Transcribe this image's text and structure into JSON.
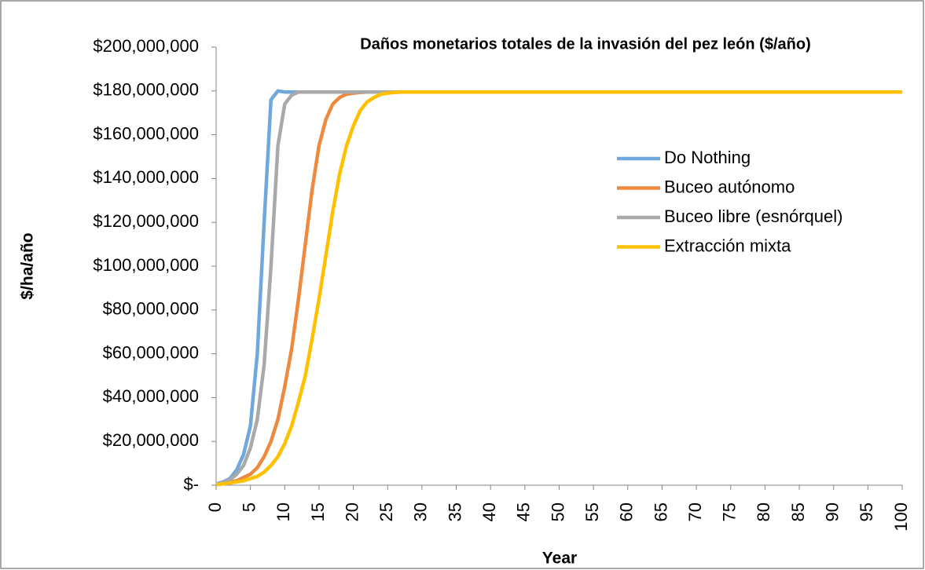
{
  "chart_data": {
    "type": "line",
    "title": "Daños monetarios totales de la invasión del pez león ($/año)",
    "x_label": "Year",
    "y_label": "$/ha/año",
    "x": [
      0,
      1,
      2,
      3,
      4,
      5,
      6,
      7,
      8,
      9,
      10,
      11,
      12,
      13,
      14,
      15,
      16,
      17,
      18,
      19,
      20,
      21,
      22,
      23,
      24,
      25,
      26,
      27,
      28,
      29,
      30,
      40,
      50,
      60,
      70,
      80,
      90,
      100
    ],
    "series": [
      {
        "name": "Do Nothing",
        "color": "#6fa8dc",
        "values": [
          500000,
          1500000,
          3000000,
          7000000,
          14000000,
          27000000,
          60000000,
          120000000,
          176000000,
          180000000,
          179500000,
          179500000,
          179500000,
          179500000,
          179500000,
          179500000,
          179500000,
          179500000,
          179500000,
          179500000,
          179500000,
          179500000,
          179500000,
          179500000,
          179500000,
          179500000,
          179500000,
          179500000,
          179500000,
          179500000,
          179500000,
          179500000,
          179500000,
          179500000,
          179500000,
          179500000,
          179500000,
          179500000
        ]
      },
      {
        "name": "Buceo autónomo",
        "color": "#ed8a3f",
        "values": [
          300000,
          800000,
          1500000,
          2000000,
          3500000,
          5000000,
          8000000,
          13000000,
          20000000,
          30000000,
          45000000,
          62000000,
          85000000,
          110000000,
          135000000,
          155000000,
          167000000,
          174000000,
          177000000,
          178500000,
          179000000,
          179300000,
          179500000,
          179500000,
          179500000,
          179500000,
          179500000,
          179500000,
          179500000,
          179500000,
          179500000,
          179500000,
          179500000,
          179500000,
          179500000,
          179500000,
          179500000,
          179500000
        ]
      },
      {
        "name": "Buceo libre (esnórquel)",
        "color": "#a9a9a9",
        "values": [
          400000,
          1200000,
          2500000,
          5000000,
          9000000,
          17000000,
          30000000,
          55000000,
          100000000,
          155000000,
          174000000,
          178000000,
          179500000,
          179500000,
          179500000,
          179500000,
          179500000,
          179500000,
          179500000,
          179500000,
          179500000,
          179500000,
          179500000,
          179500000,
          179500000,
          179500000,
          179500000,
          179500000,
          179500000,
          179500000,
          179500000,
          179500000,
          179500000,
          179500000,
          179500000,
          179500000,
          179500000,
          179500000
        ]
      },
      {
        "name": "Extracción mixta",
        "color": "#ffc000",
        "values": [
          300000,
          600000,
          1000000,
          1500000,
          2000000,
          3000000,
          4000000,
          6000000,
          9000000,
          13000000,
          19000000,
          27000000,
          38000000,
          50000000,
          67000000,
          85000000,
          105000000,
          125000000,
          142000000,
          155000000,
          164000000,
          171000000,
          175000000,
          177000000,
          178500000,
          179000000,
          179300000,
          179500000,
          179500000,
          179500000,
          179500000,
          179500000,
          179500000,
          179500000,
          179500000,
          179500000,
          179500000,
          179500000
        ]
      }
    ],
    "xlim": [
      0,
      100
    ],
    "xticks": [
      0,
      5,
      10,
      15,
      20,
      25,
      30,
      35,
      40,
      45,
      50,
      55,
      60,
      65,
      70,
      75,
      80,
      85,
      90,
      95,
      100
    ],
    "ylim": [
      0,
      200000000
    ],
    "yticks": [
      {
        "value": 0,
        "label": "$-"
      },
      {
        "value": 20000000,
        "label": "$20,000,000"
      },
      {
        "value": 40000000,
        "label": "$40,000,000"
      },
      {
        "value": 60000000,
        "label": "$60,000,000"
      },
      {
        "value": 80000000,
        "label": "$80,000,000"
      },
      {
        "value": 100000000,
        "label": "$100,000,000"
      },
      {
        "value": 120000000,
        "label": "$120,000,000"
      },
      {
        "value": 140000000,
        "label": "$140,000,000"
      },
      {
        "value": 160000000,
        "label": "$160,000,000"
      },
      {
        "value": 180000000,
        "label": "$180,000,000"
      },
      {
        "value": 200000000,
        "label": "$200,000,000"
      }
    ],
    "grid": false,
    "legend": "right"
  }
}
